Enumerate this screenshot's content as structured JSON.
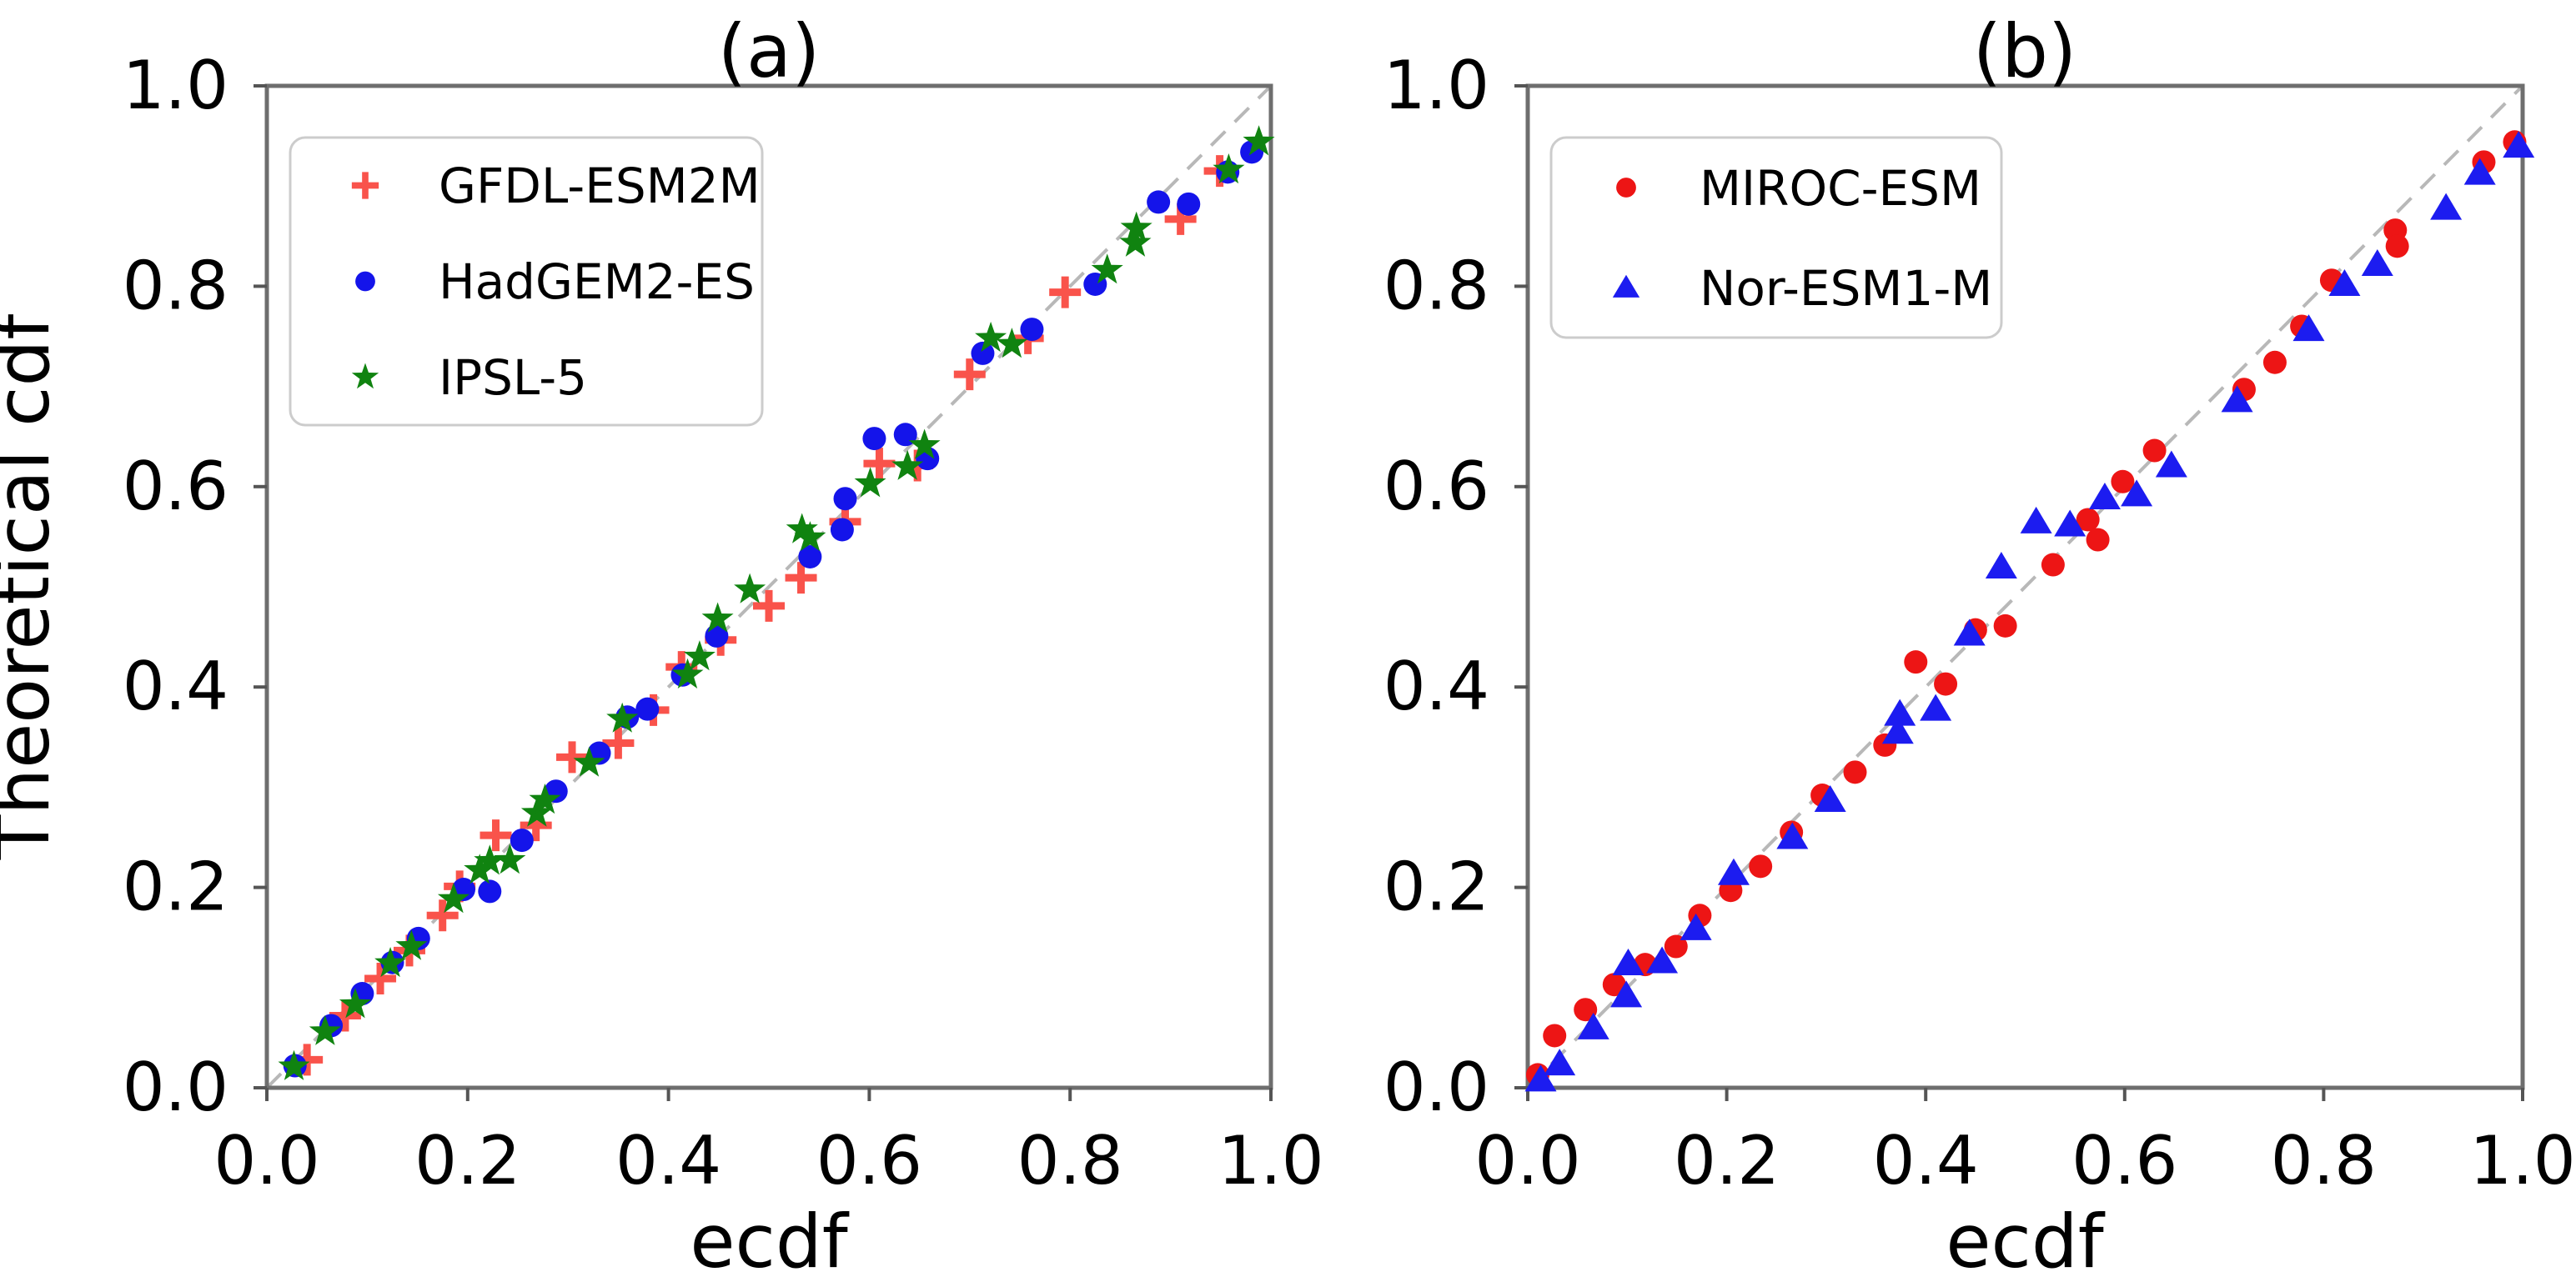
{
  "figure": {
    "background": "#ffffff",
    "accent_colors": {
      "plus_red": "#f9534b",
      "dot_red": "#ed1515",
      "circle_blue": "#1414ea",
      "triangle_blue": "#1c1cf0",
      "star_green": "#108310",
      "diagonal_gray": "#b8b8b8",
      "spine_gray": "#6e6e6e",
      "tick_gray": "#555555"
    }
  },
  "chart_data": [
    {
      "type": "scatter",
      "title": "(a)",
      "xlabel": "ecdf",
      "ylabel": "Theoretical cdf",
      "xlim": [
        0.0,
        1.0
      ],
      "ylim": [
        0.0,
        1.0
      ],
      "xtick_labels": [
        "0.0",
        "0.2",
        "0.4",
        "0.6",
        "0.8",
        "1.0"
      ],
      "ytick_labels": [
        "0.0",
        "0.2",
        "0.4",
        "0.6",
        "0.8",
        "1.0"
      ],
      "grid": false,
      "reference_line": {
        "type": "diagonal",
        "style": "dashed",
        "from": [
          0,
          0
        ],
        "to": [
          1,
          1
        ],
        "color": "#b8b8b8"
      },
      "legend_position": "upper left",
      "series": [
        {
          "name": "GFDL-ESM2M",
          "marker": "plus",
          "color": "#f9534b",
          "points": [
            [
              0.04,
              0.028
            ],
            [
              0.078,
              0.072
            ],
            [
              0.113,
              0.109
            ],
            [
              0.142,
              0.137
            ],
            [
              0.175,
              0.172
            ],
            [
              0.192,
              0.201
            ],
            [
              0.228,
              0.252
            ],
            [
              0.268,
              0.262
            ],
            [
              0.304,
              0.33
            ],
            [
              0.35,
              0.344
            ],
            [
              0.385,
              0.377
            ],
            [
              0.413,
              0.42
            ],
            [
              0.452,
              0.447
            ],
            [
              0.5,
              0.481
            ],
            [
              0.532,
              0.509
            ],
            [
              0.576,
              0.565
            ],
            [
              0.61,
              0.623
            ],
            [
              0.648,
              0.621
            ],
            [
              0.7,
              0.712
            ],
            [
              0.758,
              0.748
            ],
            [
              0.795,
              0.794
            ],
            [
              0.91,
              0.867
            ],
            [
              0.949,
              0.915
            ]
          ]
        },
        {
          "name": "HadGEM2-ES",
          "marker": "circle",
          "color": "#1414ea",
          "points": [
            [
              0.028,
              0.022
            ],
            [
              0.064,
              0.062
            ],
            [
              0.095,
              0.094
            ],
            [
              0.125,
              0.125
            ],
            [
              0.151,
              0.149
            ],
            [
              0.196,
              0.198
            ],
            [
              0.222,
              0.196
            ],
            [
              0.254,
              0.247
            ],
            [
              0.288,
              0.296
            ],
            [
              0.331,
              0.334
            ],
            [
              0.359,
              0.37
            ],
            [
              0.379,
              0.378
            ],
            [
              0.414,
              0.412
            ],
            [
              0.448,
              0.451
            ],
            [
              0.541,
              0.53
            ],
            [
              0.573,
              0.557
            ],
            [
              0.576,
              0.588
            ],
            [
              0.605,
              0.648
            ],
            [
              0.636,
              0.652
            ],
            [
              0.658,
              0.628
            ],
            [
              0.713,
              0.733
            ],
            [
              0.762,
              0.757
            ],
            [
              0.825,
              0.802
            ],
            [
              0.888,
              0.884
            ],
            [
              0.918,
              0.882
            ],
            [
              0.957,
              0.914
            ],
            [
              0.981,
              0.934
            ]
          ]
        },
        {
          "name": "IPSL-5",
          "marker": "star",
          "color": "#108310",
          "points": [
            [
              0.027,
              0.021
            ],
            [
              0.058,
              0.056
            ],
            [
              0.088,
              0.083
            ],
            [
              0.123,
              0.124
            ],
            [
              0.144,
              0.141
            ],
            [
              0.186,
              0.188
            ],
            [
              0.212,
              0.217
            ],
            [
              0.222,
              0.226
            ],
            [
              0.242,
              0.227
            ],
            [
              0.269,
              0.274
            ],
            [
              0.277,
              0.287
            ],
            [
              0.321,
              0.324
            ],
            [
              0.354,
              0.368
            ],
            [
              0.419,
              0.412
            ],
            [
              0.431,
              0.43
            ],
            [
              0.449,
              0.468
            ],
            [
              0.481,
              0.497
            ],
            [
              0.533,
              0.557
            ],
            [
              0.541,
              0.549
            ],
            [
              0.601,
              0.603
            ],
            [
              0.638,
              0.62
            ],
            [
              0.655,
              0.641
            ],
            [
              0.721,
              0.748
            ],
            [
              0.742,
              0.742
            ],
            [
              0.837,
              0.816
            ],
            [
              0.865,
              0.843
            ],
            [
              0.866,
              0.858
            ],
            [
              0.958,
              0.916
            ],
            [
              0.988,
              0.944
            ]
          ]
        }
      ]
    },
    {
      "type": "scatter",
      "title": "(b)",
      "xlabel": "ecdf",
      "ylabel": "",
      "xlim": [
        0.0,
        1.0
      ],
      "ylim": [
        0.0,
        1.0
      ],
      "xtick_labels": [
        "0.0",
        "0.2",
        "0.4",
        "0.6",
        "0.8",
        "1.0"
      ],
      "ytick_labels": [
        "0.0",
        "0.2",
        "0.4",
        "0.6",
        "0.8",
        "1.0"
      ],
      "grid": false,
      "reference_line": {
        "type": "diagonal",
        "style": "dashed",
        "from": [
          0,
          0
        ],
        "to": [
          1,
          1
        ],
        "color": "#b8b8b8"
      },
      "legend_position": "upper left",
      "series": [
        {
          "name": "MIROC-ESM",
          "marker": "dot",
          "color": "#ed1515",
          "points": [
            [
              0.01,
              0.013
            ],
            [
              0.027,
              0.052
            ],
            [
              0.058,
              0.078
            ],
            [
              0.087,
              0.103
            ],
            [
              0.118,
              0.123
            ],
            [
              0.149,
              0.141
            ],
            [
              0.173,
              0.172
            ],
            [
              0.204,
              0.197
            ],
            [
              0.234,
              0.221
            ],
            [
              0.265,
              0.255
            ],
            [
              0.296,
              0.292
            ],
            [
              0.329,
              0.315
            ],
            [
              0.359,
              0.342
            ],
            [
              0.39,
              0.425
            ],
            [
              0.42,
              0.403
            ],
            [
              0.45,
              0.457
            ],
            [
              0.48,
              0.461
            ],
            [
              0.528,
              0.522
            ],
            [
              0.563,
              0.567
            ],
            [
              0.573,
              0.547
            ],
            [
              0.598,
              0.605
            ],
            [
              0.63,
              0.636
            ],
            [
              0.72,
              0.697
            ],
            [
              0.751,
              0.724
            ],
            [
              0.778,
              0.76
            ],
            [
              0.808,
              0.806
            ],
            [
              0.872,
              0.856
            ],
            [
              0.874,
              0.84
            ],
            [
              0.961,
              0.924
            ],
            [
              0.992,
              0.944
            ]
          ]
        },
        {
          "name": "Nor-ESM1-M",
          "marker": "triangle",
          "color": "#1c1cf0",
          "points": [
            [
              0.013,
              0.008
            ],
            [
              0.032,
              0.024
            ],
            [
              0.066,
              0.06
            ],
            [
              0.099,
              0.092
            ],
            [
              0.101,
              0.124
            ],
            [
              0.135,
              0.126
            ],
            [
              0.169,
              0.159
            ],
            [
              0.207,
              0.214
            ],
            [
              0.266,
              0.25
            ],
            [
              0.304,
              0.287
            ],
            [
              0.372,
              0.355
            ],
            [
              0.374,
              0.373
            ],
            [
              0.41,
              0.378
            ],
            [
              0.444,
              0.453
            ],
            [
              0.476,
              0.52
            ],
            [
              0.511,
              0.565
            ],
            [
              0.545,
              0.562
            ],
            [
              0.58,
              0.589
            ],
            [
              0.612,
              0.592
            ],
            [
              0.647,
              0.621
            ],
            [
              0.713,
              0.686
            ],
            [
              0.785,
              0.757
            ],
            [
              0.821,
              0.802
            ],
            [
              0.854,
              0.822
            ],
            [
              0.923,
              0.878
            ],
            [
              0.957,
              0.913
            ],
            [
              0.996,
              0.94
            ]
          ]
        }
      ]
    }
  ]
}
